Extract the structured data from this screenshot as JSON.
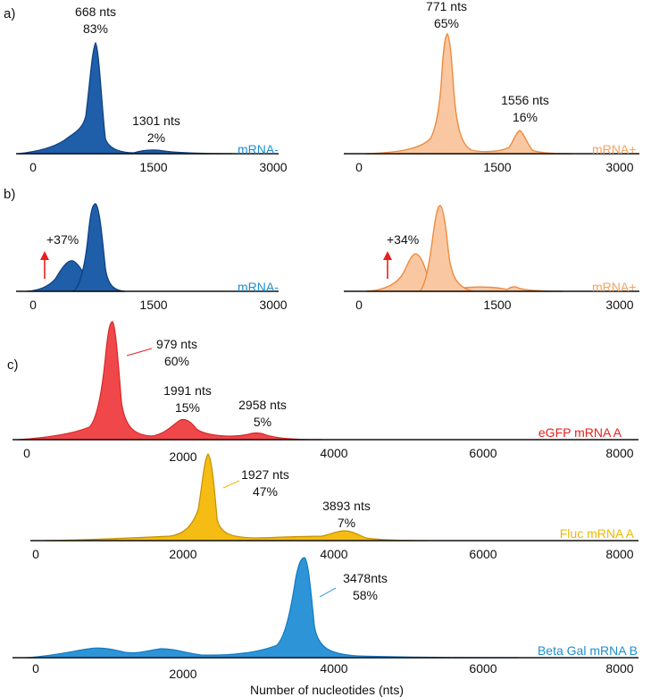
{
  "panel_labels": {
    "a": "a)",
    "b": "b)",
    "c": "c)"
  },
  "xlabel": "Number of nucleotides (nts)",
  "colors": {
    "blue_fill": "#1f5ea8",
    "blue_edge": "#0e3f80",
    "blue_label": "#1d8fd0",
    "orange_fill": "#f9c8a2",
    "orange_edge": "#f08a3c",
    "orange_label": "#f5a25c",
    "red_fill": "#f0474b",
    "red_edge": "#d82828",
    "red_label": "#e8201e",
    "yellow_fill": "#f5bc14",
    "yellow_edge": "#c49000",
    "yellow_label": "#f1b800",
    "lightblue_fill": "#2d94d8",
    "lightblue_edge": "#137ac0",
    "lightblue_label": "#1d8fd0",
    "arrow": "#e8201e",
    "axis": "#111111"
  },
  "chart_data": [
    {
      "id": "a-left",
      "type": "area",
      "title": "mRNA-",
      "xlim": [
        0,
        3000
      ],
      "ticks": [
        "0",
        "1500",
        "3000"
      ],
      "tick_values": [
        0,
        1500,
        3000
      ],
      "peaks": [
        {
          "x": 668,
          "label_nts": "668 nts",
          "label_pct": "83%",
          "fraction": 0.83
        },
        {
          "x": 1301,
          "label_nts": "1301 nts",
          "label_pct": "2%",
          "fraction": 0.02
        }
      ]
    },
    {
      "id": "a-right",
      "type": "area",
      "title": "mRNA+",
      "xlim": [
        0,
        3000
      ],
      "ticks": [
        "0",
        "1500",
        "3000"
      ],
      "tick_values": [
        0,
        1500,
        3000
      ],
      "peaks": [
        {
          "x": 771,
          "label_nts": "771 nts",
          "label_pct": "65%",
          "fraction": 0.65
        },
        {
          "x": 1556,
          "label_nts": "1556 nts",
          "label_pct": "16%",
          "fraction": 0.16
        }
      ]
    },
    {
      "id": "b-left",
      "type": "area",
      "title": "mRNA-",
      "xlim": [
        0,
        3000
      ],
      "ticks": [
        "0",
        "1500",
        "3000"
      ],
      "tick_values": [
        0,
        1500,
        3000
      ],
      "annotation": "+37%"
    },
    {
      "id": "b-right",
      "type": "area",
      "title": "mRNA+",
      "xlim": [
        0,
        3000
      ],
      "ticks": [
        "0",
        "1500",
        "3000"
      ],
      "tick_values": [
        0,
        1500,
        3000
      ],
      "annotation": "+34%"
    },
    {
      "id": "c-egfp",
      "type": "area",
      "title": "eGFP mRNA A",
      "xlim": [
        0,
        8000
      ],
      "ticks": [
        "0",
        "2000",
        "4000",
        "6000",
        "8000"
      ],
      "tick_values": [
        0,
        2000,
        4000,
        6000,
        8000
      ],
      "peaks": [
        {
          "x": 979,
          "label_nts": "979 nts",
          "label_pct": "60%",
          "fraction": 0.6
        },
        {
          "x": 1991,
          "label_nts": "1991 nts",
          "label_pct": "15%",
          "fraction": 0.15
        },
        {
          "x": 2958,
          "label_nts": "2958 nts",
          "label_pct": "5%",
          "fraction": 0.05
        }
      ]
    },
    {
      "id": "c-fluc",
      "type": "area",
      "title": "Fluc mRNA A",
      "xlim": [
        0,
        8000
      ],
      "ticks": [
        "0",
        "2000",
        "4000",
        "6000",
        "8000"
      ],
      "tick_values": [
        0,
        2000,
        4000,
        6000,
        8000
      ],
      "peaks": [
        {
          "x": 1927,
          "label_nts": "1927 nts",
          "label_pct": "47%",
          "fraction": 0.47
        },
        {
          "x": 3893,
          "label_nts": "3893 nts",
          "label_pct": "7%",
          "fraction": 0.07
        }
      ]
    },
    {
      "id": "c-betagal",
      "type": "area",
      "title": "Beta Gal mRNA B",
      "xlim": [
        0,
        8000
      ],
      "ticks": [
        "0",
        "2000",
        "4000",
        "6000",
        "8000"
      ],
      "tick_values": [
        0,
        2000,
        4000,
        6000,
        8000
      ],
      "peaks": [
        {
          "x": 3478,
          "label_nts": "3478nts",
          "label_pct": "58%",
          "fraction": 0.58
        }
      ]
    }
  ]
}
